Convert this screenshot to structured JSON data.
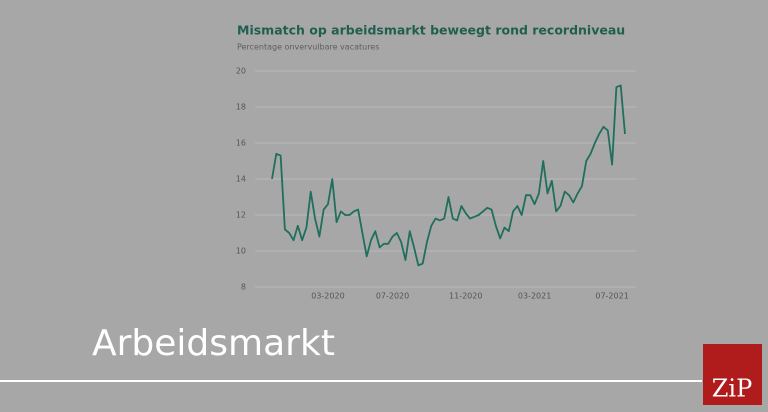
{
  "chart_data": {
    "type": "line",
    "title": "Mismatch op arbeidsmarkt beweegt rond recordniveau",
    "subtitle": "Percentage onvervulbare vacatures",
    "categories": [
      null,
      null,
      null,
      null,
      null,
      null,
      null,
      null,
      null,
      null,
      null,
      null,
      null,
      "03-2020",
      null,
      null,
      null,
      null,
      null,
      null,
      null,
      null,
      null,
      null,
      null,
      null,
      null,
      null,
      "07-2020",
      null,
      null,
      null,
      null,
      null,
      null,
      null,
      null,
      null,
      null,
      null,
      null,
      null,
      null,
      null,
      null,
      "11-2020",
      null,
      null,
      null,
      null,
      null,
      null,
      null,
      null,
      null,
      null,
      null,
      null,
      null,
      null,
      null,
      "03-2021",
      null,
      null,
      null,
      null,
      null,
      null,
      null,
      null,
      null,
      null,
      null,
      null,
      null,
      null,
      null,
      null,
      null,
      "07-2021",
      null,
      null,
      null
    ],
    "values": [
      14,
      15.4,
      15.3,
      11.2,
      11,
      10.6,
      11.4,
      10.6,
      11.3,
      13.3,
      11.8,
      10.8,
      12.3,
      12.6,
      14,
      11.6,
      12.2,
      12,
      12,
      12.2,
      12.3,
      11,
      9.7,
      10.6,
      11.1,
      10.2,
      10.4,
      10.4,
      10.8,
      11,
      10.5,
      9.5,
      11.1,
      10.2,
      9.2,
      9.3,
      10.5,
      11.4,
      11.8,
      11.7,
      11.8,
      13,
      11.8,
      11.7,
      12.5,
      12.1,
      11.8,
      11.9,
      12,
      12.2,
      12.4,
      12.3,
      11.4,
      10.7,
      11.3,
      11.1,
      12.2,
      12.5,
      12,
      13.1,
      13.1,
      12.6,
      13.2,
      15,
      13.2,
      13.9,
      12.2,
      12.5,
      13.3,
      13.1,
      12.7,
      13.2,
      13.6,
      15,
      15.4,
      16,
      16.5,
      16.9,
      16.7,
      14.8,
      19.1,
      19.2,
      16.5
    ],
    "color": "#1f6f5c",
    "ylim": [
      8,
      20
    ],
    "yticks": [
      8,
      10,
      12,
      14,
      16,
      18,
      20
    ],
    "grid": true
  },
  "banner": {
    "title": "Arbeidsmarkt",
    "logo": "ZiP"
  }
}
